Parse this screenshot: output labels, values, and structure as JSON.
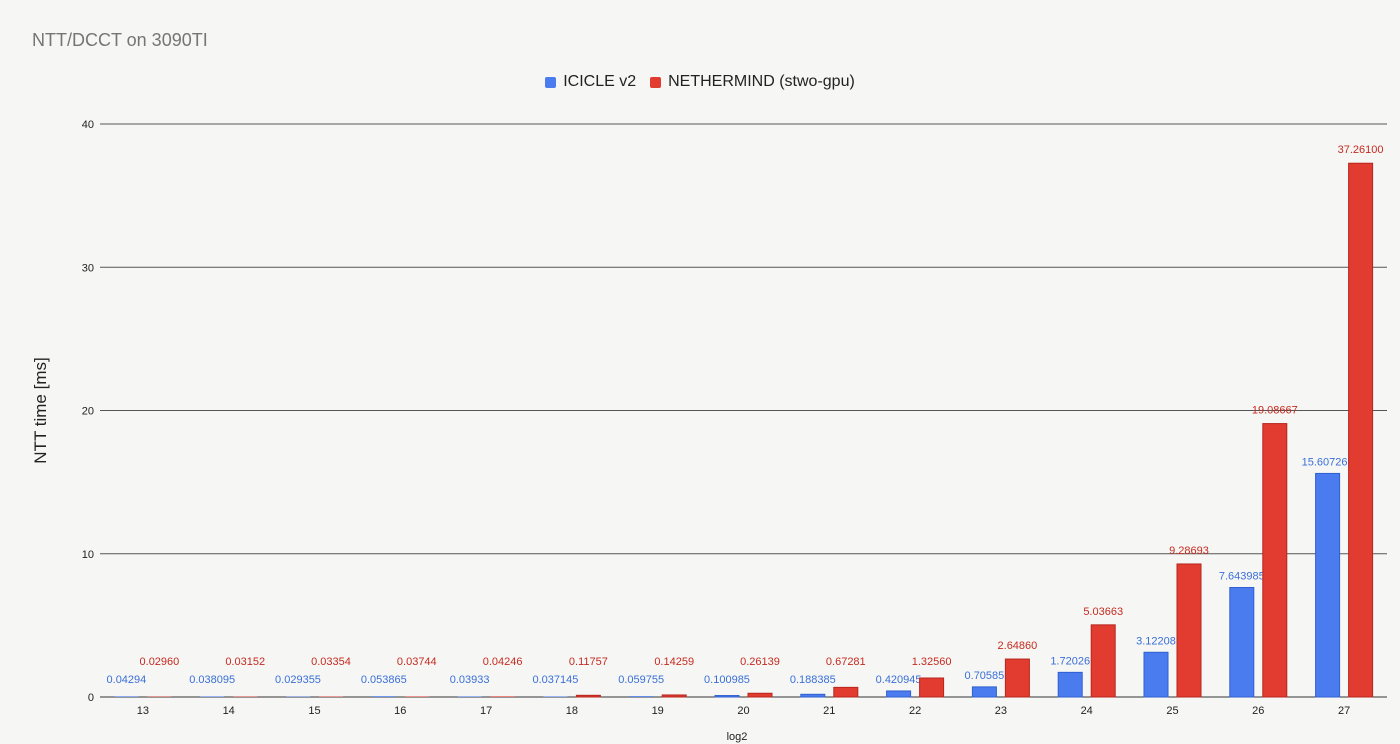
{
  "chart_data": {
    "type": "bar",
    "title": "NTT/DCCT on 3090TI",
    "xlabel": "log2",
    "ylabel": "NTT time [ms]",
    "ylim": [
      0,
      40
    ],
    "yticks": [
      0,
      10,
      20,
      30,
      40
    ],
    "grid": true,
    "legend_position": "top-center",
    "categories": [
      "13",
      "14",
      "15",
      "16",
      "17",
      "18",
      "19",
      "20",
      "21",
      "22",
      "23",
      "24",
      "25",
      "26",
      "27"
    ],
    "series": [
      {
        "name": "ICICLE v2",
        "color": "#4a7cf0",
        "values": [
          0.04294,
          0.038095,
          0.029355,
          0.053865,
          0.03933,
          0.037145,
          0.059755,
          0.100985,
          0.188385,
          0.420945,
          0.70585,
          1.72026,
          3.12208,
          7.643985,
          15.607265
        ],
        "labels": [
          "0.04294",
          "0.038095",
          "0.029355",
          "0.053865",
          "0.03933",
          "0.037145",
          "0.059755",
          "0.100985",
          "0.188385",
          "0.420945",
          "0.70585",
          "1.72026",
          "3.12208",
          "7.643985",
          "15.607265"
        ]
      },
      {
        "name": "NETHERMIND (stwo-gpu)",
        "color": "#e23b30",
        "values": [
          0.0296,
          0.03152,
          0.03354,
          0.03744,
          0.04246,
          0.11757,
          0.14259,
          0.26139,
          0.67281,
          1.3256,
          2.6486,
          5.03663,
          9.28693,
          19.08667,
          37.261
        ],
        "labels": [
          "0.02960",
          "0.03152",
          "0.03354",
          "0.03744",
          "0.04246",
          "0.11757",
          "0.14259",
          "0.26139",
          "0.67281",
          "1.32560",
          "2.64860",
          "5.03663",
          "9.28693",
          "19.08667",
          "37.26100"
        ]
      }
    ]
  }
}
